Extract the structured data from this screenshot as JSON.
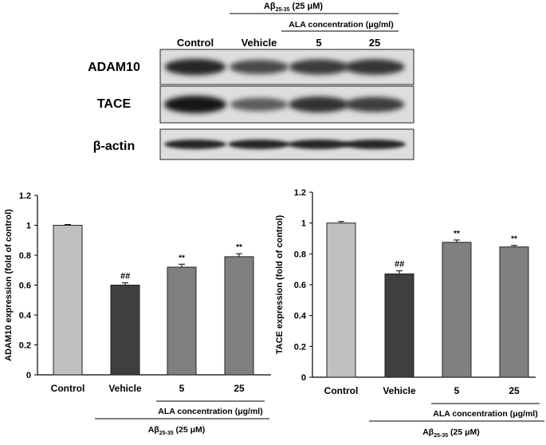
{
  "blot": {
    "header": {
      "condition_label": "Aβ25-35 (25 μM)",
      "condition_main": "Aβ",
      "condition_sub": "25-35",
      "condition_rest": " (25  μM)",
      "ala_label": "ALA concentration (μg/ml)"
    },
    "lanes": [
      "Control",
      "Vehicle",
      "5",
      "25"
    ],
    "rows": [
      {
        "label": "ADAM10",
        "intensities": [
          0.9,
          0.72,
          0.8,
          0.82
        ]
      },
      {
        "label": "TACE",
        "intensities": [
          1.0,
          0.62,
          0.85,
          0.78
        ]
      },
      {
        "label": "β-actin",
        "intensities": [
          0.9,
          0.9,
          0.9,
          0.9
        ]
      }
    ]
  },
  "chart_data": [
    {
      "type": "bar",
      "categories": [
        "Control",
        "Vehicle",
        "5",
        "25"
      ],
      "values": [
        1.0,
        0.6,
        0.72,
        0.79
      ],
      "errors": [
        0.005,
        0.015,
        0.02,
        0.02
      ],
      "annotations": [
        "",
        "##",
        "**",
        "**"
      ],
      "bar_colors": [
        "#c0c0c0",
        "#3f3f3f",
        "#808080",
        "#808080"
      ],
      "xlabel": "",
      "ylabel": "ADAM10 expression (fold of control)",
      "ylim": [
        0,
        1.2
      ],
      "yticks": [
        "0",
        "0.2",
        "0.4",
        "0.6",
        "0.8",
        "1",
        "1.2"
      ],
      "group_labels": {
        "ala": "ALA concentration (μg/ml)",
        "abeta": "Aβ25-35 (25 μM)"
      }
    },
    {
      "type": "bar",
      "categories": [
        "Control",
        "Vehicle",
        "5",
        "25"
      ],
      "values": [
        1.0,
        0.67,
        0.875,
        0.845
      ],
      "errors": [
        0.01,
        0.02,
        0.015,
        0.01
      ],
      "annotations": [
        "",
        "##",
        "**",
        "**"
      ],
      "bar_colors": [
        "#c0c0c0",
        "#3f3f3f",
        "#808080",
        "#808080"
      ],
      "xlabel": "",
      "ylabel": "TACE expression (fold of control)",
      "ylim": [
        0,
        1.2
      ],
      "yticks": [
        "0",
        "0.2",
        "0.4",
        "0.6",
        "0.8",
        "1",
        "1.2"
      ],
      "group_labels": {
        "ala": "ALA concentration (μg/ml)",
        "abeta": "Aβ25-35 (25 μM)"
      }
    }
  ]
}
